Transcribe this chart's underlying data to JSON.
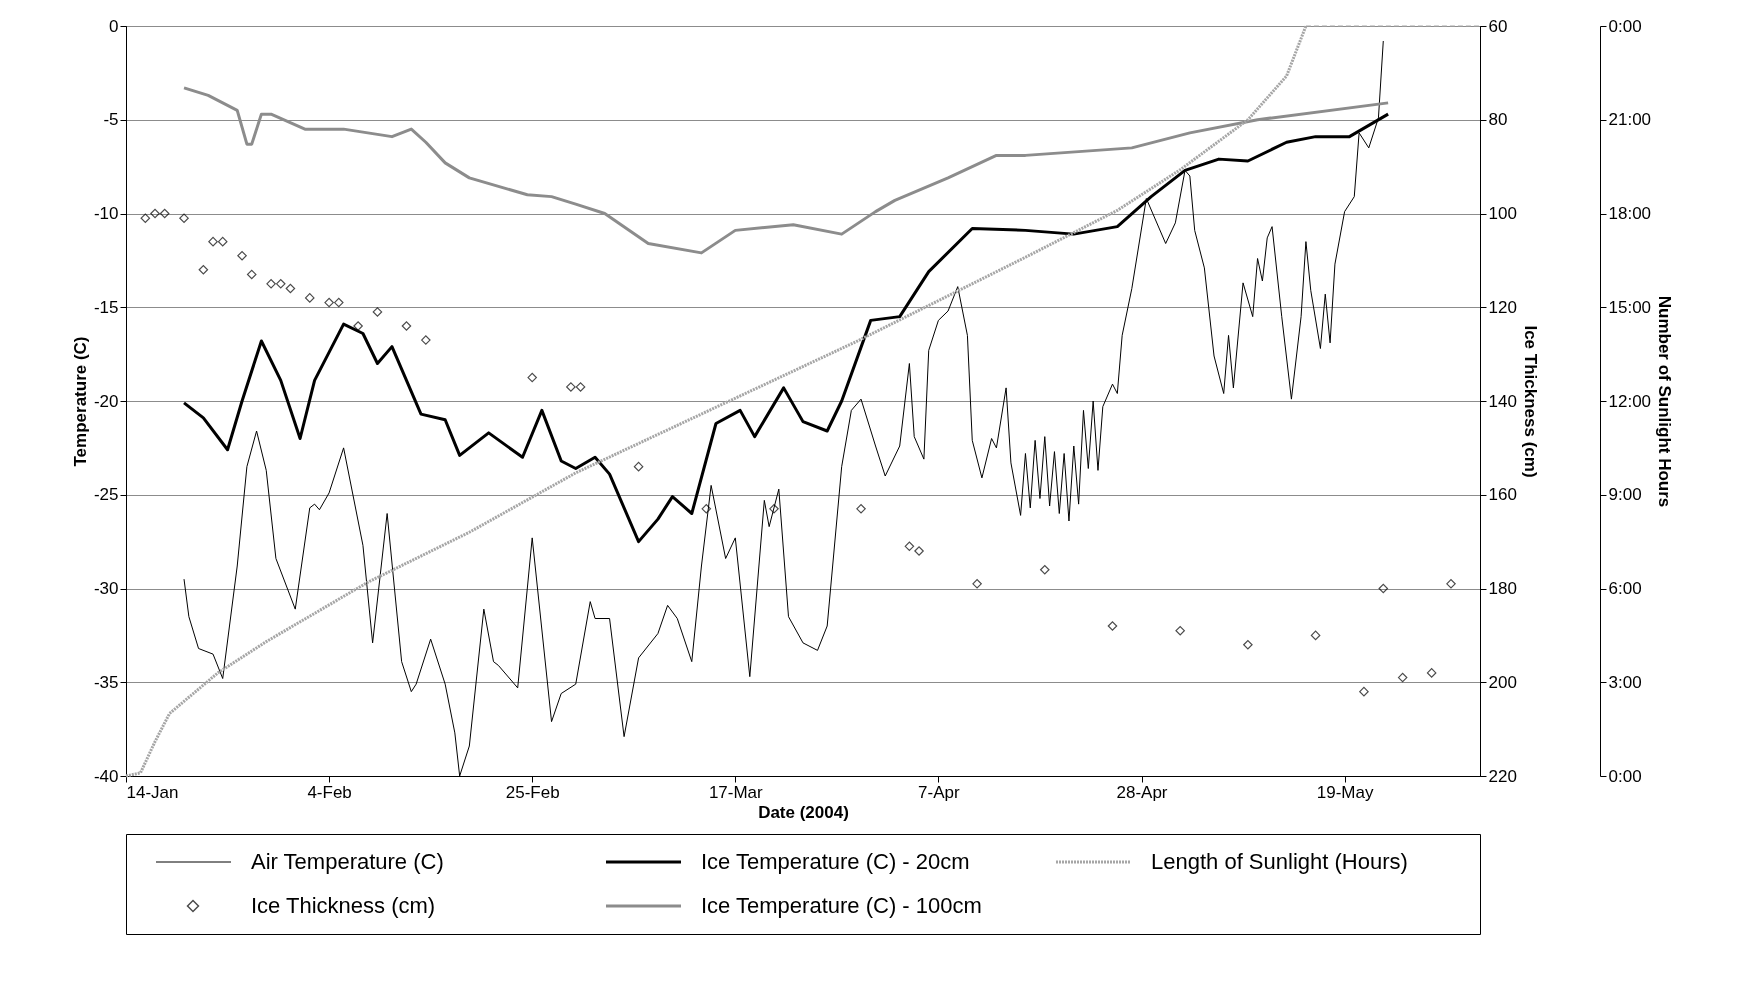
{
  "chart_data": {
    "type": "line",
    "xlabel": "Date (2004)",
    "ylabel": "Temperature (C)",
    "y2label": "Ice Thickness (cm)",
    "y3label": "Number of Sunlight Hours",
    "xlim": [
      "2004-01-14",
      "2004-06-02"
    ],
    "xticks": [
      {
        "value": "2004-01-14",
        "label": "14-Jan"
      },
      {
        "value": "2004-02-04",
        "label": "4-Feb"
      },
      {
        "value": "2004-02-25",
        "label": "25-Feb"
      },
      {
        "value": "2004-03-17",
        "label": "17-Mar"
      },
      {
        "value": "2004-04-07",
        "label": "7-Apr"
      },
      {
        "value": "2004-04-28",
        "label": "28-Apr"
      },
      {
        "value": "2004-05-19",
        "label": "19-May"
      }
    ],
    "ylim": [
      -40,
      0
    ],
    "yticks": [
      -40,
      -35,
      -30,
      -25,
      -20,
      -15,
      -10,
      -5,
      0
    ],
    "y2lim": [
      220,
      60
    ],
    "y2ticks": [
      60,
      80,
      100,
      120,
      140,
      160,
      180,
      200,
      220
    ],
    "y3lim": [
      0,
      24
    ],
    "y3ticks": [
      {
        "value": 0,
        "label": "0:00"
      },
      {
        "value": 3,
        "label": "3:00"
      },
      {
        "value": 6,
        "label": "6:00"
      },
      {
        "value": 9,
        "label": "9:00"
      },
      {
        "value": 12,
        "label": "12:00"
      },
      {
        "value": 15,
        "label": "15:00"
      },
      {
        "value": 18,
        "label": "18:00"
      },
      {
        "value": 21,
        "label": "21:00"
      },
      {
        "value": 24,
        "label": "0:00"
      }
    ],
    "grid": "y",
    "legend": "bottom",
    "series": [
      {
        "name": "Air Temperature  (C)",
        "axis": "y",
        "color": "#000000",
        "line_style": "solid",
        "x": [
          "2004-01-20",
          "2004-01-20T12:00",
          "2004-01-21T12:00",
          "2004-01-23",
          "2004-01-24",
          "2004-01-25T12:00",
          "2004-01-26T12:00",
          "2004-01-27T12:00",
          "2004-01-28T12:00",
          "2004-01-29T12:00",
          "2004-01-31T12:00",
          "2004-02-02",
          "2004-02-02T12:00",
          "2004-02-03",
          "2004-02-04",
          "2004-02-05T12:00",
          "2004-02-07T12:00",
          "2004-02-08T12:00",
          "2004-02-10",
          "2004-02-11T12:00",
          "2004-02-12T12:00",
          "2004-02-13",
          "2004-02-14T12:00",
          "2004-02-16",
          "2004-02-17",
          "2004-02-17T12:00",
          "2004-02-18T12:00",
          "2004-02-20",
          "2004-02-21",
          "2004-02-21T12:00",
          "2004-02-23T12:00",
          "2004-02-25",
          "2004-02-27",
          "2004-02-28",
          "2004-02-29T12:00",
          "2004-03-02",
          "2004-03-02T12:00",
          "2004-03-04",
          "2004-03-05T12:00",
          "2004-03-07",
          "2004-03-09",
          "2004-03-10",
          "2004-03-11",
          "2004-03-12T12:00",
          "2004-03-13T12:00",
          "2004-03-14T12:00",
          "2004-03-16",
          "2004-03-17",
          "2004-03-18T12:00",
          "2004-03-20",
          "2004-03-20T12:00",
          "2004-03-21T12:00",
          "2004-03-22T12:00",
          "2004-03-24",
          "2004-03-25T12:00",
          "2004-03-26T12:00",
          "2004-03-28",
          "2004-03-29",
          "2004-03-30",
          "2004-03-31T12:00",
          "2004-04-01T12:00",
          "2004-04-03",
          "2004-04-04",
          "2004-04-04T12:00",
          "2004-04-05T12:00",
          "2004-04-06",
          "2004-04-07",
          "2004-04-08",
          "2004-04-09",
          "2004-04-10",
          "2004-04-10T12:00",
          "2004-04-11T12:00",
          "2004-04-12T12:00",
          "2004-04-13",
          "2004-04-14",
          "2004-04-14T12:00",
          "2004-04-15T12:00",
          "2004-04-16",
          "2004-04-16T12:00",
          "2004-04-17",
          "2004-04-17T12:00",
          "2004-04-18",
          "2004-04-18T12:00",
          "2004-04-19",
          "2004-04-19T12:00",
          "2004-04-20",
          "2004-04-20T12:00",
          "2004-04-21",
          "2004-04-21T12:00",
          "2004-04-22",
          "2004-04-22T12:00",
          "2004-04-23",
          "2004-04-23T12:00",
          "2004-04-24",
          "2004-04-25",
          "2004-04-25T12:00",
          "2004-04-26",
          "2004-04-27",
          "2004-04-28T12:00",
          "2004-04-30T12:00",
          "2004-05-01T12:00",
          "2004-05-02T12:00",
          "2004-05-03",
          "2004-05-03T12:00",
          "2004-05-04T12:00",
          "2004-05-05T12:00",
          "2004-05-06T12:00",
          "2004-05-07",
          "2004-05-07T12:00",
          "2004-05-08T12:00",
          "2004-05-09T12:00",
          "2004-05-10",
          "2004-05-10T12:00",
          "2004-05-11",
          "2004-05-11T12:00",
          "2004-05-12T12:00",
          "2004-05-13T12:00",
          "2004-05-14T12:00",
          "2004-05-15",
          "2004-05-15T12:00",
          "2004-05-16T12:00",
          "2004-05-17",
          "2004-05-17T12:00",
          "2004-05-18",
          "2004-05-19",
          "2004-05-20",
          "2004-05-20T12:00",
          "2004-05-21T12:00",
          "2004-05-22T12:00",
          "2004-05-23"
        ],
        "values": [
          -29.5,
          -31.5,
          -33.2,
          -33.5,
          -34.8,
          -28.8,
          -23.5,
          -21.6,
          -23.7,
          -28.4,
          -31.1,
          -25.7,
          -25.5,
          -25.8,
          -24.9,
          -22.5,
          -27.7,
          -32.9,
          -26,
          -33.9,
          -35.5,
          -35.1,
          -32.7,
          -35.1,
          -37.7,
          -40,
          -38.4,
          -31.1,
          -33.9,
          -34.1,
          -35.3,
          -27.3,
          -37.1,
          -35.6,
          -35.1,
          -30.7,
          -31.6,
          -31.6,
          -37.9,
          -33.7,
          -32.4,
          -30.9,
          -31.6,
          -33.9,
          -28.8,
          -24.5,
          -28.4,
          -27.3,
          -34.7,
          -25.3,
          -26.7,
          -24.7,
          -31.5,
          -32.9,
          -33.3,
          -32,
          -23.5,
          -20.5,
          -19.9,
          -22.4,
          -24,
          -22.4,
          -18,
          -21.9,
          -23.1,
          -17.3,
          -15.7,
          -15.2,
          -13.9,
          -16.5,
          -22.1,
          -24.1,
          -22,
          -22.5,
          -19.3,
          -23.3,
          -26.1,
          -22.8,
          -25.7,
          -22.1,
          -25.2,
          -21.9,
          -25.6,
          -22.7,
          -26,
          -22.8,
          -26.4,
          -22.4,
          -25.5,
          -20.5,
          -23.6,
          -20,
          -23.7,
          -20.3,
          -19.1,
          -19.6,
          -16.5,
          -14,
          -9.2,
          -11.6,
          -10.5,
          -7.7,
          -8,
          -10.9,
          -12.9,
          -17.6,
          -19.6,
          -16.5,
          -19.3,
          -13.7,
          -15.5,
          -12.4,
          -13.6,
          -11.3,
          -10.7,
          -15.5,
          -19.9,
          -15.5,
          -11.5,
          -14.1,
          -17.2,
          -14.3,
          -16.9,
          -12.7,
          -9.9,
          -9.1,
          -5.7,
          -6.5,
          -4.9,
          -0.8
        ]
      },
      {
        "name": "Ice Thickness  (cm)",
        "type": "scatter",
        "axis": "y2",
        "color": "#000000",
        "marker": "diamond",
        "x": [
          "2004-01-16",
          "2004-01-17",
          "2004-01-18",
          "2004-01-20",
          "2004-01-22",
          "2004-01-23",
          "2004-01-24",
          "2004-01-26",
          "2004-01-27",
          "2004-01-29",
          "2004-01-30",
          "2004-01-31",
          "2004-02-02",
          "2004-02-04",
          "2004-02-05",
          "2004-02-07",
          "2004-02-09",
          "2004-02-12",
          "2004-02-14",
          "2004-02-25",
          "2004-02-29",
          "2004-03-01",
          "2004-03-07",
          "2004-03-14",
          "2004-03-21",
          "2004-03-30",
          "2004-04-04",
          "2004-04-05",
          "2004-04-11",
          "2004-04-18",
          "2004-04-25",
          "2004-05-02",
          "2004-05-09",
          "2004-05-16",
          "2004-05-21",
          "2004-05-23",
          "2004-05-25",
          "2004-05-28",
          "2004-05-30"
        ],
        "values": [
          101,
          100,
          100,
          101,
          112,
          106,
          106,
          109,
          113,
          115,
          115,
          116,
          118,
          119,
          119,
          124,
          121,
          124,
          127,
          135,
          137,
          137,
          154,
          163,
          163,
          163,
          171,
          172,
          179,
          176,
          188,
          189,
          192,
          190,
          202,
          180,
          199,
          198,
          179
        ]
      },
      {
        "name": "Ice Temperature (C) - 20cm",
        "axis": "y",
        "color": "#000000",
        "line_style": "solid",
        "x": [
          "2004-01-20",
          "2004-01-22",
          "2004-01-24T12:00",
          "2004-01-26",
          "2004-01-28",
          "2004-01-30",
          "2004-02-01",
          "2004-02-02T12:00",
          "2004-02-05T12:00",
          "2004-02-07T12:00",
          "2004-02-09",
          "2004-02-10T12:00",
          "2004-02-13T12:00",
          "2004-02-16",
          "2004-02-17T12:00",
          "2004-02-20T12:00",
          "2004-02-24",
          "2004-02-26",
          "2004-02-28",
          "2004-02-29T12:00",
          "2004-03-02T12:00",
          "2004-03-04",
          "2004-03-07",
          "2004-03-09",
          "2004-03-10T12:00",
          "2004-03-12T12:00",
          "2004-03-15",
          "2004-03-17T12:00",
          "2004-03-19",
          "2004-03-22",
          "2004-03-24",
          "2004-03-26T12:00",
          "2004-03-28",
          "2004-03-31",
          "2004-04-03",
          "2004-04-06",
          "2004-04-10T12:00",
          "2004-04-16",
          "2004-04-21",
          "2004-04-25T12:00",
          "2004-04-29",
          "2004-05-02T12:00",
          "2004-05-06",
          "2004-05-09",
          "2004-05-13",
          "2004-05-16",
          "2004-05-19T12:00",
          "2004-05-23T12:00"
        ],
        "values": [
          -20.1,
          -20.9,
          -22.6,
          -20,
          -16.8,
          -18.9,
          -22,
          -18.9,
          -15.9,
          -16.4,
          -18,
          -17.1,
          -20.7,
          -21,
          -22.9,
          -21.7,
          -23,
          -20.5,
          -23.2,
          -23.6,
          -23,
          -23.9,
          -27.5,
          -26.3,
          -25.1,
          -26,
          -21.2,
          -20.5,
          -21.9,
          -19.3,
          -21.1,
          -21.6,
          -20,
          -15.7,
          -15.5,
          -13.1,
          -10.8,
          -10.9,
          -11.1,
          -10.7,
          -9.1,
          -7.7,
          -7.1,
          -7.2,
          -6.2,
          -5.9,
          -5.9,
          -4.7
        ]
      },
      {
        "name": "Ice Temperature (C) - 100cm",
        "axis": "y",
        "color": "#8c8c8c",
        "line_style": "solid",
        "x": [
          "2004-01-20",
          "2004-01-22T12:00",
          "2004-01-25T12:00",
          "2004-01-26T12:00",
          "2004-01-27",
          "2004-01-28",
          "2004-01-29",
          "2004-02-01T12:00",
          "2004-02-05T12:00",
          "2004-02-10T12:00",
          "2004-02-12T12:00",
          "2004-02-14",
          "2004-02-16",
          "2004-02-18T12:00",
          "2004-02-24T12:00",
          "2004-02-27",
          "2004-02-29T12:00",
          "2004-03-03T12:00",
          "2004-03-08",
          "2004-03-13T12:00",
          "2004-03-17",
          "2004-03-23",
          "2004-03-28",
          "2004-03-31T12:00",
          "2004-04-02T12:00",
          "2004-04-08",
          "2004-04-13",
          "2004-04-16",
          "2004-04-27",
          "2004-05-03",
          "2004-05-10",
          "2004-05-23T12:00"
        ],
        "values": [
          -3.3,
          -3.7,
          -4.5,
          -6.3,
          -6.3,
          -4.7,
          -4.7,
          -5.5,
          -5.5,
          -5.9,
          -5.5,
          -6.2,
          -7.3,
          -8.1,
          -9,
          -9.1,
          -9.5,
          -10,
          -11.6,
          -12.1,
          -10.9,
          -10.6,
          -11.1,
          -9.9,
          -9.3,
          -8.1,
          -6.9,
          -6.9,
          -6.5,
          -5.7,
          -5,
          -4.1
        ]
      },
      {
        "name": "Length of Sunlight (Hours)",
        "axis": "y3",
        "color": "#a6a6a6",
        "line_style": "dotted",
        "x": [
          "2004-01-14",
          "2004-01-15T12:00",
          "2004-01-17",
          "2004-01-18T12:00",
          "2004-01-23T12:00",
          "2004-01-28T12:00",
          "2004-02-08",
          "2004-02-18T12:00",
          "2004-02-29T12:00",
          "2004-03-15",
          "2004-03-29T12:00",
          "2004-04-16",
          "2004-04-25T12:00",
          "2004-05-02",
          "2004-05-09",
          "2004-05-13",
          "2004-05-15"
        ],
        "values": [
          0,
          0.1,
          1.1,
          2,
          3.3,
          4.3,
          6.2,
          7.8,
          9.7,
          11.8,
          13.9,
          16.6,
          18.1,
          19.4,
          21,
          22.4,
          24
        ]
      },
      {
        "axis": "y3",
        "color": "#a6a6a6",
        "line_style": "dashed",
        "x": [
          "2004-05-15",
          "2004-06-02"
        ],
        "values": [
          24,
          24
        ]
      }
    ]
  }
}
